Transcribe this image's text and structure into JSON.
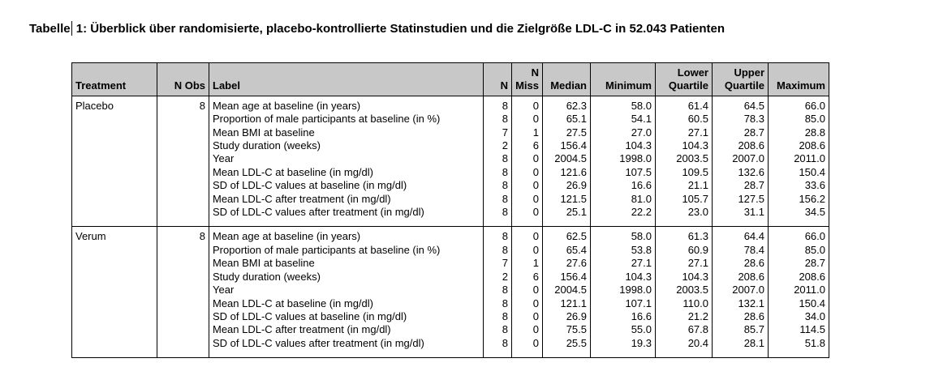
{
  "title": {
    "part1": "Tabelle",
    "part2": " 1: Überblick über randomisierte, placebo-kontrollierte Statinstudien und die Zielgröße LDL-C in 52.043 Patienten"
  },
  "table": {
    "columns": [
      "Treatment",
      "N Obs",
      "Label",
      "N",
      "N\nMiss",
      "Median",
      "Minimum",
      "Lower\nQuartile",
      "Upper\nQuartile",
      "Maximum"
    ],
    "value_columns": [
      "N",
      "N Miss",
      "Median",
      "Minimum",
      "Lower Quartile",
      "Upper Quartile",
      "Maximum"
    ],
    "groups": [
      {
        "treatment": "Placebo",
        "n_obs": "8",
        "stats": [
          {
            "label": "Mean age at baseline (in years)",
            "values": [
              "8",
              "0",
              "62.3",
              "58.0",
              "61.4",
              "64.5",
              "66.0"
            ]
          },
          {
            "label": "Proportion of male participants at baseline (in %)",
            "values": [
              "8",
              "0",
              "65.1",
              "54.1",
              "60.5",
              "78.3",
              "85.0"
            ]
          },
          {
            "label": "Mean BMI at baseline",
            "values": [
              "7",
              "1",
              "27.5",
              "27.0",
              "27.1",
              "28.7",
              "28.8"
            ]
          },
          {
            "label": "Study duration (weeks)",
            "values": [
              "2",
              "6",
              "156.4",
              "104.3",
              "104.3",
              "208.6",
              "208.6"
            ]
          },
          {
            "label": "Year",
            "values": [
              "8",
              "0",
              "2004.5",
              "1998.0",
              "2003.5",
              "2007.0",
              "2011.0"
            ]
          },
          {
            "label": "Mean LDL-C at baseline (in mg/dl)",
            "values": [
              "8",
              "0",
              "121.6",
              "107.5",
              "109.5",
              "132.6",
              "150.4"
            ]
          },
          {
            "label": "SD of LDL-C values at baseline (in mg/dl)",
            "values": [
              "8",
              "0",
              "26.9",
              "16.6",
              "21.1",
              "28.7",
              "33.6"
            ]
          },
          {
            "label": "Mean LDL-C after treatment (in mg/dl)",
            "values": [
              "8",
              "0",
              "121.5",
              "81.0",
              "105.7",
              "127.5",
              "156.2"
            ]
          },
          {
            "label": "SD of LDL-C values after treatment (in mg/dl)",
            "values": [
              "8",
              "0",
              "25.1",
              "22.2",
              "23.0",
              "31.1",
              "34.5"
            ]
          }
        ]
      },
      {
        "treatment": "Verum",
        "n_obs": "8",
        "stats": [
          {
            "label": "Mean age at baseline (in years)",
            "values": [
              "8",
              "0",
              "62.5",
              "58.0",
              "61.3",
              "64.4",
              "66.0"
            ]
          },
          {
            "label": "Proportion of male participants at baseline (in %)",
            "values": [
              "8",
              "0",
              "65.4",
              "53.8",
              "60.9",
              "78.4",
              "85.0"
            ]
          },
          {
            "label": "Mean BMI at baseline",
            "values": [
              "7",
              "1",
              "27.6",
              "27.1",
              "27.1",
              "28.6",
              "28.7"
            ]
          },
          {
            "label": "Study duration (weeks)",
            "values": [
              "2",
              "6",
              "156.4",
              "104.3",
              "104.3",
              "208.6",
              "208.6"
            ]
          },
          {
            "label": "Year",
            "values": [
              "8",
              "0",
              "2004.5",
              "1998.0",
              "2003.5",
              "2007.0",
              "2011.0"
            ]
          },
          {
            "label": "Mean LDL-C at baseline (in mg/dl)",
            "values": [
              "8",
              "0",
              "121.1",
              "107.1",
              "110.0",
              "132.1",
              "150.4"
            ]
          },
          {
            "label": "SD of LDL-C values at baseline (in mg/dl)",
            "values": [
              "8",
              "0",
              "26.9",
              "16.6",
              "21.2",
              "28.6",
              "34.0"
            ]
          },
          {
            "label": "Mean LDL-C after treatment (in mg/dl)",
            "values": [
              "8",
              "0",
              "75.5",
              "55.0",
              "67.8",
              "85.7",
              "114.5"
            ]
          },
          {
            "label": "SD of LDL-C values after treatment (in mg/dl)",
            "values": [
              "8",
              "0",
              "25.5",
              "19.3",
              "20.4",
              "28.1",
              "51.8"
            ]
          }
        ]
      }
    ]
  },
  "colors": {
    "header_background": "#c8c8c8",
    "border": "#000000",
    "text": "#000000",
    "page_background": "#ffffff"
  }
}
